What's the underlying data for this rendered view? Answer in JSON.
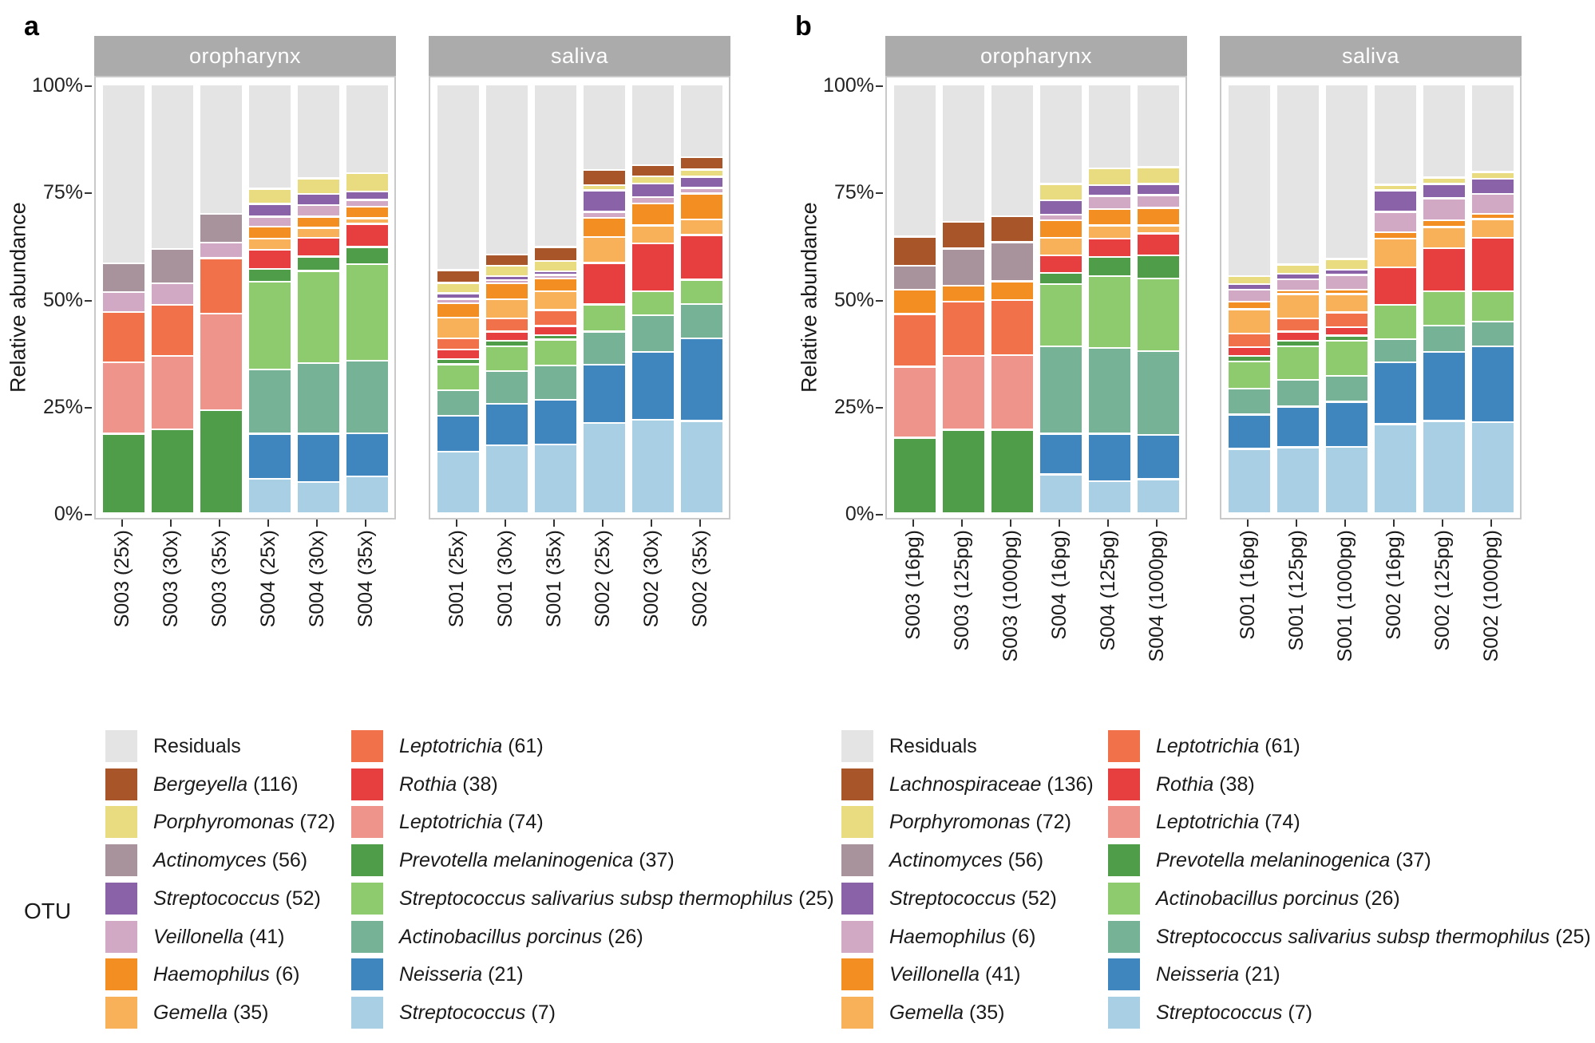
{
  "figure": {
    "otu_label": "OTU"
  },
  "chart_data": [
    {
      "type": "stacked-bar",
      "panel_label": "a",
      "ylabel": "Relative abundance",
      "y_ticks": [
        "100%",
        "75%",
        "50%",
        "25%",
        "0%"
      ],
      "ylim": [
        0,
        100
      ],
      "grid": false,
      "legend_position": "bottom",
      "series_bottom_to_top": [
        {
          "name": "Streptococcus",
          "count": 7,
          "color": "#A9CFE5",
          "italic": true
        },
        {
          "name": "Neisseria",
          "count": 21,
          "color": "#3E86BD",
          "italic": true
        },
        {
          "name": "Actinobacillus porcinus",
          "count": 26,
          "color": "#76B295",
          "italic": true
        },
        {
          "name": "Streptococcus salivarius subsp thermophilus",
          "count": 25,
          "color": "#8DCB6E",
          "italic": true
        },
        {
          "name": "Prevotella melaninogenica",
          "count": 37,
          "color": "#4F9D49",
          "italic": true
        },
        {
          "name": "Leptotrichia",
          "count": 74,
          "color": "#EF948B",
          "italic": true
        },
        {
          "name": "Rothia",
          "count": 38,
          "color": "#E73F3F",
          "italic": true
        },
        {
          "name": "Leptotrichia",
          "count": 61,
          "color": "#F1714B",
          "italic": true
        },
        {
          "name": "Gemella",
          "count": 35,
          "color": "#F8B159",
          "italic": true
        },
        {
          "name": "Haemophilus",
          "count": 6,
          "color": "#F28E22",
          "italic": true
        },
        {
          "name": "Veillonella",
          "count": 41,
          "color": "#D2A9C4",
          "italic": true
        },
        {
          "name": "Streptococcus",
          "count": 52,
          "color": "#8A62A8",
          "italic": true
        },
        {
          "name": "Actinomyces",
          "count": 56,
          "color": "#A8939C",
          "italic": true
        },
        {
          "name": "Porphyromonas",
          "count": 72,
          "color": "#E9DB7F",
          "italic": true
        },
        {
          "name": "Bergeyella",
          "count": 116,
          "color": "#A9552A",
          "italic": true
        },
        {
          "name": "Residuals",
          "count": null,
          "color": "#E4E4E4",
          "italic": false
        }
      ],
      "facets": [
        {
          "title": "oropharynx",
          "bars": [
            {
              "label": "S003 (25x)",
              "values": [
                0,
                0,
                0,
                0,
                18.5,
                16.7,
                0,
                11.7,
                0,
                0,
                4.7,
                0,
                6.7,
                0,
                0,
                41.7
              ]
            },
            {
              "label": "S003 (30x)",
              "values": [
                0,
                0,
                0,
                0,
                19.6,
                17.1,
                0,
                11.9,
                0,
                0,
                5.0,
                0,
                8.0,
                0,
                0,
                38.4
              ]
            },
            {
              "label": "S003 (35x)",
              "values": [
                0,
                0,
                0,
                0,
                24.0,
                22.6,
                0,
                12.9,
                0,
                0,
                3.6,
                0,
                6.7,
                0,
                0,
                30.2
              ]
            },
            {
              "label": "S004 (25x)",
              "values": [
                8.0,
                10.5,
                15.0,
                20.5,
                3.0,
                0,
                4.5,
                0,
                2.6,
                2.8,
                2.3,
                3.0,
                0,
                3.5,
                0,
                24.3
              ]
            },
            {
              "label": "S004 (30x)",
              "values": [
                7.3,
                11.2,
                16.5,
                21.5,
                3.4,
                0,
                4.4,
                0,
                2.3,
                2.6,
                2.7,
                2.6,
                0,
                3.6,
                0,
                21.9
              ]
            },
            {
              "label": "S004 (35x)",
              "values": [
                8.6,
                10.0,
                17.0,
                22.5,
                4.0,
                0,
                5.4,
                0,
                1.3,
                2.7,
                1.6,
                2.0,
                0,
                4.2,
                0,
                20.7
              ]
            }
          ]
        },
        {
          "title": "saliva",
          "bars": [
            {
              "label": "S001 (25x)",
              "values": [
                14.3,
                8.4,
                6.0,
                6.0,
                1.2,
                0,
                2.3,
                2.6,
                4.8,
                3.4,
                1.0,
                1.3,
                0,
                2.4,
                3.0,
                43.3
              ]
            },
            {
              "label": "S001 (30x)",
              "values": [
                15.8,
                9.7,
                7.7,
                5.7,
                1.3,
                0,
                2.2,
                3.0,
                4.5,
                3.7,
                0.8,
                0.9,
                0,
                2.4,
                2.6,
                39.7
              ]
            },
            {
              "label": "S001 (35x)",
              "values": [
                16.0,
                10.5,
                8.0,
                6.0,
                1.0,
                0,
                2.2,
                3.7,
                4.4,
                2.9,
                0.9,
                0.7,
                0,
                2.5,
                3.3,
                37.9
              ]
            },
            {
              "label": "S002 (25x)",
              "values": [
                21.0,
                13.6,
                7.8,
                6.3,
                0,
                0,
                9.7,
                0,
                6.0,
                4.5,
                1.4,
                5.0,
                0,
                1.2,
                3.6,
                19.9
              ]
            },
            {
              "label": "S002 (30x)",
              "values": [
                21.8,
                15.8,
                8.6,
                5.6,
                0,
                0,
                11.2,
                0,
                4.1,
                5.2,
                1.5,
                3.1,
                0,
                1.7,
                2.6,
                18.8
              ]
            },
            {
              "label": "S002 (35x)",
              "values": [
                21.5,
                19.3,
                8.0,
                5.7,
                0,
                0,
                10.4,
                0,
                3.6,
                6.1,
                1.3,
                2.6,
                0,
                1.7,
                2.9,
                16.9
              ]
            }
          ]
        }
      ]
    },
    {
      "type": "stacked-bar",
      "panel_label": "b",
      "ylabel": "Relative abundance",
      "y_ticks": [
        "100%",
        "75%",
        "50%",
        "25%",
        "0%"
      ],
      "ylim": [
        0,
        100
      ],
      "grid": false,
      "legend_position": "bottom",
      "series_bottom_to_top": [
        {
          "name": "Streptococcus",
          "count": 7,
          "color": "#A9CFE5",
          "italic": true
        },
        {
          "name": "Neisseria",
          "count": 21,
          "color": "#3E86BD",
          "italic": true
        },
        {
          "name": "Streptococcus salivarius subsp thermophilus",
          "count": 25,
          "color": "#76B295",
          "italic": true
        },
        {
          "name": "Actinobacillus porcinus",
          "count": 26,
          "color": "#8DCB6E",
          "italic": true
        },
        {
          "name": "Prevotella melaninogenica",
          "count": 37,
          "color": "#4F9D49",
          "italic": true
        },
        {
          "name": "Leptotrichia",
          "count": 74,
          "color": "#EF948B",
          "italic": true
        },
        {
          "name": "Rothia",
          "count": 38,
          "color": "#E73F3F",
          "italic": true
        },
        {
          "name": "Leptotrichia",
          "count": 61,
          "color": "#F1714B",
          "italic": true
        },
        {
          "name": "Gemella",
          "count": 35,
          "color": "#F8B159",
          "italic": true
        },
        {
          "name": "Veillonella",
          "count": 41,
          "color": "#F28E22",
          "italic": true
        },
        {
          "name": "Haemophilus",
          "count": 6,
          "color": "#D2A9C4",
          "italic": true
        },
        {
          "name": "Streptococcus",
          "count": 52,
          "color": "#8A62A8",
          "italic": true
        },
        {
          "name": "Actinomyces",
          "count": 56,
          "color": "#A8939C",
          "italic": true
        },
        {
          "name": "Porphyromonas",
          "count": 72,
          "color": "#E9DB7F",
          "italic": true
        },
        {
          "name": "Lachnospiraceae",
          "count": 136,
          "color": "#A9552A",
          "italic": true
        },
        {
          "name": "Residuals",
          "count": null,
          "color": "#E4E4E4",
          "italic": false
        }
      ],
      "facets": [
        {
          "title": "oropharynx",
          "bars": [
            {
              "label": "S003 (16pg)",
              "values": [
                0,
                0,
                0,
                0,
                17.6,
                16.6,
                0,
                12.3,
                0,
                5.6,
                0,
                0,
                5.6,
                0,
                6.8,
                35.5
              ]
            },
            {
              "label": "S003 (125pg)",
              "values": [
                0,
                0,
                0,
                0,
                19.5,
                17.2,
                0,
                12.7,
                0,
                3.7,
                0,
                0,
                8.6,
                0,
                6.3,
                32.0
              ]
            },
            {
              "label": "S003 (1000pg)",
              "values": [
                0,
                0,
                0,
                0,
                19.5,
                17.4,
                0,
                12.8,
                0,
                4.4,
                0,
                0,
                9.1,
                0,
                6.1,
                30.7
              ]
            },
            {
              "label": "S004 (16pg)",
              "values": [
                9.0,
                9.5,
                20.4,
                14.6,
                2.6,
                0,
                4.1,
                0,
                4.1,
                4.1,
                1.2,
                3.4,
                0,
                3.8,
                0,
                23.2
              ]
            },
            {
              "label": "S004 (125pg)",
              "values": [
                7.5,
                11.0,
                20.0,
                16.8,
                4.5,
                0,
                4.3,
                0,
                3.0,
                3.9,
                3.0,
                2.5,
                0,
                4.0,
                0,
                19.5
              ]
            },
            {
              "label": "S004 (1000pg)",
              "values": [
                7.9,
                10.3,
                19.6,
                17.0,
                5.3,
                0,
                5.2,
                0,
                1.8,
                4.1,
                3.0,
                2.6,
                0,
                3.9,
                0,
                19.3
              ]
            }
          ]
        },
        {
          "title": "saliva",
          "bars": [
            {
              "label": "S001 (16pg)",
              "values": [
                15.0,
                8.0,
                6.0,
                6.4,
                1.3,
                0,
                2.0,
                3.2,
                5.7,
                1.8,
                2.7,
                1.4,
                0,
                1.8,
                0,
                44.7
              ]
            },
            {
              "label": "S001 (125pg)",
              "values": [
                15.4,
                9.5,
                6.2,
                7.8,
                1.3,
                0,
                2.2,
                3.0,
                5.7,
                0.9,
                2.6,
                1.3,
                0,
                2.1,
                0,
                42.0
              ]
            },
            {
              "label": "S001 (1000pg)",
              "values": [
                15.5,
                10.5,
                6.0,
                8.2,
                1.2,
                0,
                2.0,
                3.4,
                4.3,
                1.0,
                3.5,
                1.2,
                0,
                2.5,
                0,
                40.7
              ]
            },
            {
              "label": "S002 (16pg)",
              "values": [
                20.8,
                14.4,
                5.4,
                8.0,
                0,
                0,
                8.8,
                0,
                6.7,
                1.5,
                4.7,
                5.0,
                0,
                1.3,
                0,
                23.4
              ]
            },
            {
              "label": "S002 (125pg)",
              "values": [
                21.5,
                16.1,
                6.2,
                8.0,
                0,
                0,
                10.0,
                0,
                5.0,
                1.5,
                5.2,
                3.3,
                0,
                1.5,
                0,
                21.7
              ]
            },
            {
              "label": "S002 (1000pg)",
              "values": [
                21.2,
                17.7,
                5.8,
                7.1,
                0,
                0,
                12.5,
                0,
                4.3,
                1.2,
                4.7,
                3.5,
                0,
                1.6,
                0,
                20.4
              ]
            }
          ]
        }
      ]
    }
  ]
}
